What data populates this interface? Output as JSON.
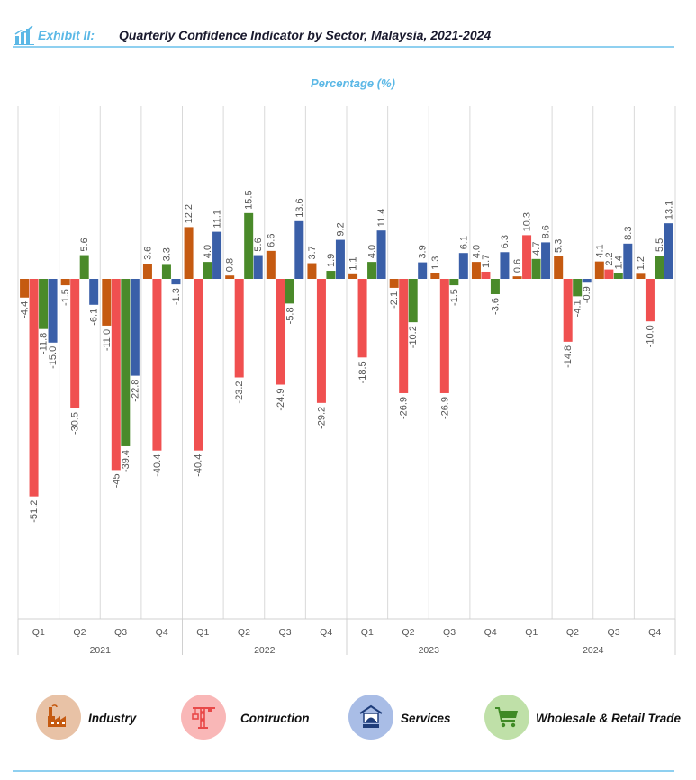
{
  "header": {
    "exhibit_label": "Exhibit  II:",
    "title": "Quarterly Confidence Indicator by Sector, Malaysia, 2021-2024"
  },
  "chart_data": {
    "type": "bar",
    "title": "Percentage (%)",
    "categories": [
      "Q1",
      "Q2",
      "Q3",
      "Q4",
      "Q1",
      "Q2",
      "Q3",
      "Q4",
      "Q1",
      "Q2",
      "Q3",
      "Q4",
      "Q1",
      "Q2",
      "Q3",
      "Q4"
    ],
    "groups": [
      "2021",
      "2022",
      "2023",
      "2024"
    ],
    "ylim": [
      -80,
      20
    ],
    "grid": true,
    "series": [
      {
        "name": "Industry",
        "color": "#c55a11",
        "values": [
          -4.4,
          -1.5,
          -11.0,
          3.6,
          12.2,
          0.8,
          6.6,
          3.7,
          1.1,
          -2.1,
          1.3,
          4.0,
          0.6,
          5.3,
          4.1,
          1.2
        ],
        "labels": [
          "-4.4",
          "-1.5",
          "-11.0",
          "3.6",
          "12.2",
          "0.8",
          "6.6",
          "3.7",
          "1.1",
          "-2.1",
          "1.3",
          "4.0",
          "0.6",
          "5.3",
          "4.1",
          "1.2"
        ]
      },
      {
        "name": "Contruction",
        "color": "#f05050",
        "values": [
          -51.2,
          -30.5,
          -45,
          -40.4,
          -40.4,
          -23.2,
          -24.9,
          -29.2,
          -18.5,
          -26.9,
          -26.9,
          1.7,
          10.3,
          -14.8,
          2.2,
          -10.0
        ],
        "labels": [
          "-51.2",
          "-30.5",
          "-45",
          "-40.4",
          "-40.4",
          "-23.2",
          "-24.9",
          "-29.2",
          "-18.5",
          "-26.9",
          "-26.9",
          "1.7",
          "10.3",
          "-14.8",
          "2.2",
          "-10.0"
        ]
      },
      {
        "name": "Wholesale & Retail Trade",
        "color": "#4a8a2a",
        "values": [
          -11.8,
          5.6,
          -39.4,
          3.3,
          4.0,
          15.5,
          -5.8,
          1.9,
          4.0,
          -10.2,
          -1.5,
          -3.6,
          4.7,
          -4.1,
          1.4,
          5.5
        ],
        "labels": [
          "-11.8",
          "5.6",
          "-39.4",
          "3.3",
          "4.0",
          "15.5",
          "-5.8",
          "1.9",
          "4.0",
          "-10.2",
          "-1.5",
          "-3.6",
          "4.7",
          "-4.1",
          "1.4",
          "5.5"
        ]
      },
      {
        "name": "Services",
        "color": "#3a5fa8",
        "values": [
          -15.0,
          -6.1,
          -22.8,
          -1.3,
          11.1,
          5.6,
          13.6,
          9.2,
          11.4,
          3.9,
          6.1,
          6.3,
          8.6,
          -0.9,
          8.3,
          13.1
        ],
        "labels": [
          "-15.0",
          "-6.1",
          "-22.8",
          "-1.3",
          "11.1",
          "5.6",
          "13.6",
          "9.2",
          "11.4",
          "3.9",
          "6.1",
          "6.3",
          "8.6",
          "-0.9",
          "8.3",
          "13.1"
        ]
      }
    ]
  },
  "legend": [
    {
      "label": "Industry",
      "icon": "factory-icon",
      "bg": "#e8c2a6",
      "fg": "#c55a11"
    },
    {
      "label": "Contruction",
      "icon": "crane-icon",
      "bg": "#f9b7b7",
      "fg": "#e84848"
    },
    {
      "label": "Services",
      "icon": "service-bell-icon",
      "bg": "#a9bde6",
      "fg": "#3a5fa8"
    },
    {
      "label": "Wholesale & Retail Trade",
      "icon": "shopping-cart-icon",
      "bg": "#bfe0a8",
      "fg": "#3f8a25"
    }
  ]
}
